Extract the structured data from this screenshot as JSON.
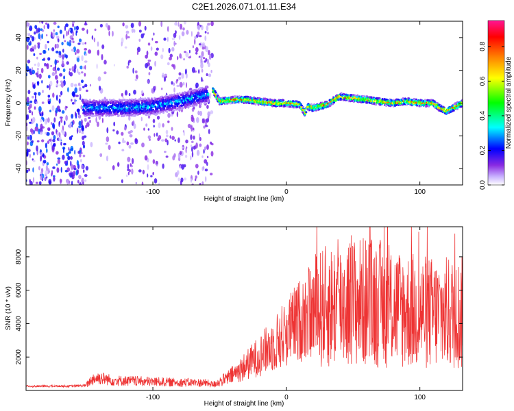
{
  "figure_title": "C2E1.2026.071.01.11.E34",
  "chart_data": [
    {
      "type": "heatmap",
      "title": "C2E1.2026.071.01.11.E34",
      "xlabel": "Height of straight line (km)",
      "ylabel": "Frequency (Hz)",
      "xlim": [
        -195,
        132
      ],
      "ylim": [
        -50,
        50
      ],
      "xticks": [
        -100,
        0,
        100
      ],
      "xtick_labels": [
        "-100",
        "0",
        "100"
      ],
      "yticks": [
        -40,
        -20,
        0,
        20,
        40
      ],
      "ytick_labels": [
        "-40",
        "-20",
        "0",
        "20",
        "40"
      ],
      "colorbar": {
        "label": "Normalized spectral amplitude",
        "range": [
          0,
          0.95
        ],
        "ticks": [
          0.0,
          0.2,
          0.4,
          0.6,
          0.8
        ],
        "tick_labels": [
          "0.0",
          "0.2",
          "0.4",
          "0.6",
          "0.8"
        ],
        "colormap": [
          "#ffffff",
          "#c9b3ff",
          "#8a2be2",
          "#0000ff",
          "#00ffff",
          "#00ff00",
          "#ffff00",
          "#ff7f00",
          "#ff0000",
          "#ff1493"
        ]
      },
      "ridge": {
        "name": "Frequency ridge",
        "x": [
          -152,
          -140,
          -120,
          -100,
          -80,
          -60,
          -55,
          -50,
          -40,
          -30,
          -20,
          -10,
          0,
          10,
          14,
          16,
          20,
          30,
          40,
          50,
          60,
          70,
          80,
          90,
          100,
          110,
          115,
          120,
          132
        ],
        "y": [
          -3,
          -3,
          -3,
          -2,
          1,
          5,
          8,
          1,
          2,
          2,
          1,
          0,
          0,
          -1,
          -6,
          -2,
          -3,
          -1,
          4,
          3,
          2,
          1,
          0,
          1,
          0,
          0,
          -3,
          -5,
          0
        ]
      },
      "band_segments": [
        {
          "x_from": -152,
          "x_to": -58,
          "value_peak": 0.35,
          "spread_hz": 5
        },
        {
          "x_from": -55,
          "x_to": 132,
          "value_peak": 0.9,
          "spread_hz": 2
        }
      ],
      "noise_region": {
        "x_from": -195,
        "x_to": -55,
        "dense_from": -195,
        "dense_to": -150,
        "value_peak": 0.25
      }
    },
    {
      "type": "line",
      "xlabel": "Height of straight line (km)",
      "ylabel": "SNR (10 * v/v)",
      "xlim": [
        -195,
        132
      ],
      "ylim": [
        0,
        9800
      ],
      "xticks": [
        -100,
        0,
        100
      ],
      "xtick_labels": [
        "-100",
        "0",
        "100"
      ],
      "yticks": [
        2000,
        4000,
        6000,
        8000
      ],
      "ytick_labels": [
        "2000",
        "4000",
        "6000",
        "8000"
      ],
      "color": "#ee3333",
      "series": [
        {
          "name": "SNR envelope",
          "x": [
            -195,
            -160,
            -150,
            -145,
            -140,
            -130,
            -110,
            -90,
            -60,
            -55,
            -45,
            -35,
            -25,
            -15,
            -5,
            0,
            10,
            20,
            30,
            40,
            50,
            60,
            70,
            80,
            90,
            100,
            110,
            120,
            132
          ],
          "y": [
            250,
            260,
            300,
            700,
            750,
            600,
            550,
            500,
            450,
            350,
            700,
            1200,
            1800,
            2400,
            3100,
            3500,
            4200,
            4700,
            5000,
            5200,
            5300,
            5300,
            5200,
            5000,
            4800,
            4700,
            4600,
            4600,
            4600
          ]
        }
      ]
    }
  ]
}
